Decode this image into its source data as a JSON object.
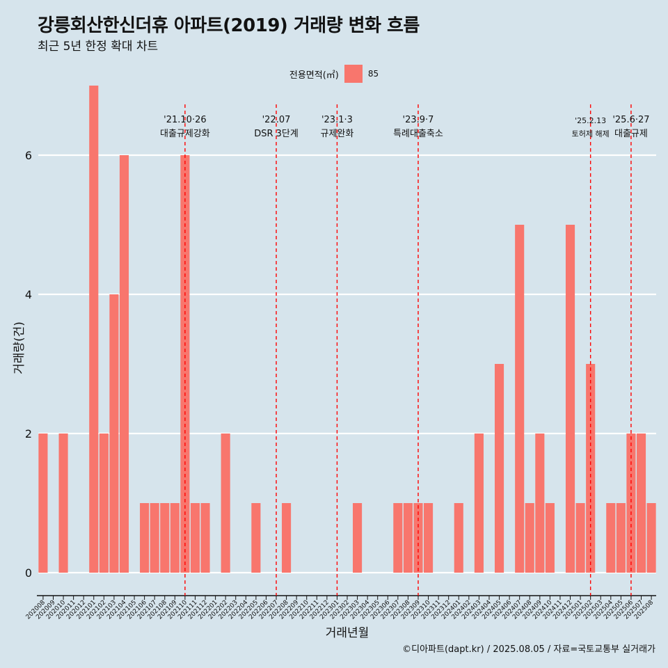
{
  "title": "강릉회산한신더휴 아파트(2019) 거래량 변화 흐름",
  "subtitle": "최근 5년 한정 확대 차트",
  "caption": "©디아파트(dapt.kr) / 2025.08.05 / 자료=국토교통부 실거래가",
  "legend": {
    "title": "전용면적(㎡)",
    "items": [
      {
        "name": "85",
        "color": "#f8766d"
      }
    ]
  },
  "chart_data": {
    "type": "bar",
    "xlabel": "거래년월",
    "ylabel": "거래량(건)",
    "ylim": [
      0,
      7
    ],
    "yticks": [
      0,
      2,
      4,
      6
    ],
    "grid": true,
    "categories": [
      "202008",
      "202009",
      "202010",
      "202011",
      "202012",
      "202101",
      "202102",
      "202103",
      "202104",
      "202105",
      "202106",
      "202107",
      "202108",
      "202109",
      "202110",
      "202111",
      "202112",
      "202201",
      "202202",
      "202203",
      "202204",
      "202205",
      "202206",
      "202207",
      "202208",
      "202209",
      "202210",
      "202211",
      "202212",
      "202301",
      "202302",
      "202303",
      "202304",
      "202305",
      "202306",
      "202307",
      "202308",
      "202309",
      "202310",
      "202311",
      "202312",
      "202401",
      "202402",
      "202403",
      "202404",
      "202405",
      "202406",
      "202407",
      "202408",
      "202409",
      "202410",
      "202411",
      "202412",
      "202501",
      "202502",
      "202503",
      "202504",
      "202505",
      "202506",
      "202507",
      "202508"
    ],
    "series": [
      {
        "name": "85",
        "color": "#f8766d",
        "values": [
          2,
          0,
          2,
          0,
          0,
          7,
          2,
          4,
          6,
          0,
          1,
          1,
          1,
          1,
          6,
          1,
          1,
          0,
          2,
          0,
          0,
          1,
          0,
          0,
          1,
          0,
          0,
          0,
          0,
          0,
          0,
          1,
          0,
          0,
          0,
          1,
          1,
          1,
          1,
          0,
          0,
          1,
          0,
          2,
          0,
          3,
          0,
          5,
          1,
          2,
          1,
          0,
          5,
          1,
          3,
          0,
          1,
          1,
          2,
          2,
          1
        ]
      }
    ],
    "annotations": [
      {
        "category": "202110",
        "date": "'21.10·26",
        "label": "대출규제강화",
        "small": false
      },
      {
        "category": "202207",
        "date": "'22.07",
        "label": "DSR 3단계",
        "small": false
      },
      {
        "category": "202301",
        "date": "'23.1·3",
        "label": "규제완화",
        "small": false
      },
      {
        "category": "202309",
        "date": "'23.9·7",
        "label": "특례대출축소",
        "small": false
      },
      {
        "category": "202502",
        "date": "'25.2.13",
        "label": "토허제 해제",
        "small": true
      },
      {
        "category": "202506",
        "date": "'25.6·27",
        "label": "대출규제",
        "small": false
      }
    ],
    "annotation_color": "#ff0000"
  }
}
